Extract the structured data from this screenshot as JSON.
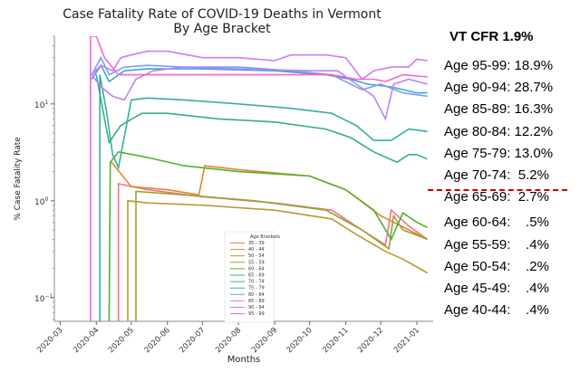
{
  "chart_data": {
    "type": "line",
    "title": "Case Fatality Rate of COVID-19 Deaths in Vermont",
    "subtitle": "By Age Bracket",
    "xlabel": "Months",
    "ylabel": "% Case Fatality Rate",
    "yscale": "log",
    "ylim": [
      0.057,
      50
    ],
    "xlim": [
      "2020-02-25",
      "2021-01-15"
    ],
    "grid": false,
    "legend_title": "Age Brackets",
    "legend_position": "lower-center",
    "x_ticks": [
      "2020-03",
      "2020-04",
      "2020-05",
      "2020-06",
      "2020-07",
      "2020-08",
      "2020-09",
      "2020-10",
      "2020-11",
      "2020-12",
      "2021-01"
    ],
    "y_ticks": [
      {
        "value": 0.1,
        "base": "10",
        "exp": "−1"
      },
      {
        "value": 1,
        "base": "10",
        "exp": "0"
      },
      {
        "value": 10,
        "base": "10",
        "exp": "1"
      }
    ],
    "series": [
      {
        "name": "35 - 39",
        "color": "#f77189",
        "points": [
          [
            "2020-04-20",
            0.057
          ],
          [
            "2020-04-20",
            1.5
          ],
          [
            "2020-05-15",
            1.3
          ],
          [
            "2020-07-01",
            1.1
          ],
          [
            "2020-09-01",
            0.95
          ],
          [
            "2020-10-20",
            0.8
          ],
          [
            "2020-11-15",
            0.5
          ],
          [
            "2020-12-05",
            0.35
          ],
          [
            "2020-12-10",
            0.8
          ],
          [
            "2020-12-25",
            0.55
          ],
          [
            "2021-01-10",
            0.4
          ]
        ]
      },
      {
        "name": "40 - 44",
        "color": "#e68332",
        "points": [
          [
            "2020-04-14",
            2.5
          ],
          [
            "2020-05-01",
            1.4
          ],
          [
            "2020-06-01",
            1.3
          ],
          [
            "2020-06-28",
            1.15
          ],
          [
            "2020-07-03",
            2.3
          ],
          [
            "2020-08-01",
            2.1
          ],
          [
            "2020-10-01",
            1.8
          ],
          [
            "2020-11-01",
            1.3
          ],
          [
            "2020-12-01",
            0.7
          ],
          [
            "2021-01-10",
            0.4
          ]
        ]
      },
      {
        "name": "50 - 54",
        "color": "#bb9832",
        "points": [
          [
            "2020-04-28",
            0.057
          ],
          [
            "2020-04-28",
            1.0
          ],
          [
            "2020-05-15",
            0.95
          ],
          [
            "2020-07-01",
            0.9
          ],
          [
            "2020-09-01",
            0.8
          ],
          [
            "2020-10-20",
            0.65
          ],
          [
            "2020-11-10",
            0.45
          ],
          [
            "2020-12-05",
            0.3
          ],
          [
            "2020-12-20",
            0.25
          ],
          [
            "2021-01-10",
            0.18
          ]
        ]
      },
      {
        "name": "55 - 59",
        "color": "#97a431",
        "points": [
          [
            "2020-05-05",
            0.057
          ],
          [
            "2020-05-05",
            1.25
          ],
          [
            "2020-06-15",
            1.15
          ],
          [
            "2020-08-15",
            1.0
          ],
          [
            "2020-10-15",
            0.8
          ],
          [
            "2020-11-15",
            0.5
          ],
          [
            "2020-12-08",
            0.32
          ],
          [
            "2020-12-12",
            0.7
          ],
          [
            "2020-12-20",
            0.5
          ],
          [
            "2021-01-10",
            0.4
          ]
        ]
      },
      {
        "name": "60 - 64",
        "color": "#50b131",
        "points": [
          [
            "2020-04-12",
            0.057
          ],
          [
            "2020-04-13",
            2.5
          ],
          [
            "2020-04-20",
            3.2
          ],
          [
            "2020-05-15",
            2.8
          ],
          [
            "2020-06-15",
            2.3
          ],
          [
            "2020-08-01",
            2.0
          ],
          [
            "2020-10-01",
            1.8
          ],
          [
            "2020-11-01",
            1.3
          ],
          [
            "2020-11-25",
            0.8
          ],
          [
            "2020-12-10",
            0.4
          ],
          [
            "2020-12-20",
            0.75
          ],
          [
            "2021-01-01",
            0.6
          ],
          [
            "2021-01-10",
            0.53
          ]
        ]
      },
      {
        "name": "65 - 69",
        "color": "#34af84",
        "points": [
          [
            "2020-04-01",
            20
          ],
          [
            "2020-04-08",
            7
          ],
          [
            "2020-04-12",
            4
          ],
          [
            "2020-04-22",
            6
          ],
          [
            "2020-05-10",
            8
          ],
          [
            "2020-06-01",
            8
          ],
          [
            "2020-07-15",
            7
          ],
          [
            "2020-09-01",
            6.5
          ],
          [
            "2020-10-15",
            5.5
          ],
          [
            "2020-11-05",
            4.5
          ],
          [
            "2020-11-25",
            3.2
          ],
          [
            "2020-12-15",
            2.5
          ],
          [
            "2020-12-25",
            3
          ],
          [
            "2021-01-01",
            3
          ],
          [
            "2021-01-10",
            2.7
          ]
        ]
      },
      {
        "name": "70 - 74",
        "color": "#36ada4",
        "points": [
          [
            "2020-04-04",
            0.057
          ],
          [
            "2020-04-04",
            20
          ],
          [
            "2020-04-10",
            8
          ],
          [
            "2020-04-15",
            3
          ],
          [
            "2020-04-20",
            2.2
          ],
          [
            "2020-05-01",
            11
          ],
          [
            "2020-05-15",
            11.5
          ],
          [
            "2020-06-15",
            11
          ],
          [
            "2020-08-01",
            10
          ],
          [
            "2020-09-15",
            9
          ],
          [
            "2020-10-20",
            8
          ],
          [
            "2020-11-10",
            6
          ],
          [
            "2020-11-25",
            4.2
          ],
          [
            "2020-12-10",
            4.2
          ],
          [
            "2020-12-25",
            5.5
          ],
          [
            "2021-01-10",
            5.2
          ]
        ]
      },
      {
        "name": "75 - 79",
        "color": "#38a7d0",
        "points": [
          [
            "2020-03-28",
            18
          ],
          [
            "2020-04-05",
            25
          ],
          [
            "2020-04-12",
            17
          ],
          [
            "2020-04-25",
            22
          ],
          [
            "2020-05-15",
            23
          ],
          [
            "2020-07-01",
            23
          ],
          [
            "2020-09-01",
            22
          ],
          [
            "2020-10-15",
            20
          ],
          [
            "2020-11-05",
            18
          ],
          [
            "2020-11-20",
            16
          ],
          [
            "2020-12-10",
            15
          ],
          [
            "2021-01-01",
            13
          ],
          [
            "2021-01-10",
            13
          ]
        ]
      },
      {
        "name": "80 - 84",
        "color": "#7d9af7",
        "points": [
          [
            "2020-03-28",
            20
          ],
          [
            "2020-04-05",
            30
          ],
          [
            "2020-04-12",
            20
          ],
          [
            "2020-04-25",
            24
          ],
          [
            "2020-05-15",
            25
          ],
          [
            "2020-06-15",
            24
          ],
          [
            "2020-08-01",
            24
          ],
          [
            "2020-09-15",
            22
          ],
          [
            "2020-10-20",
            20
          ],
          [
            "2020-11-15",
            14
          ],
          [
            "2020-12-01",
            16
          ],
          [
            "2020-12-20",
            13
          ],
          [
            "2021-01-10",
            12
          ]
        ]
      },
      {
        "name": "85 - 89",
        "color": "#bb83f4",
        "points": [
          [
            "2020-03-28",
            20
          ],
          [
            "2020-04-05",
            15
          ],
          [
            "2020-04-15",
            12
          ],
          [
            "2020-04-25",
            11
          ],
          [
            "2020-05-05",
            18
          ],
          [
            "2020-05-20",
            22
          ],
          [
            "2020-06-15",
            24
          ],
          [
            "2020-08-01",
            23
          ],
          [
            "2020-10-01",
            22
          ],
          [
            "2020-10-25",
            22
          ],
          [
            "2020-11-10",
            16
          ],
          [
            "2020-11-25",
            12
          ],
          [
            "2020-12-05",
            7
          ],
          [
            "2020-12-12",
            16
          ],
          [
            "2020-12-25",
            18
          ],
          [
            "2021-01-10",
            16
          ]
        ]
      },
      {
        "name": "90 - 94",
        "color": "#cc7af4",
        "points": [
          [
            "2020-03-28",
            20
          ],
          [
            "2020-04-05",
            25
          ],
          [
            "2020-04-15",
            22
          ],
          [
            "2020-04-22",
            30
          ],
          [
            "2020-05-01",
            32
          ],
          [
            "2020-05-15",
            35
          ],
          [
            "2020-06-01",
            35
          ],
          [
            "2020-07-01",
            30
          ],
          [
            "2020-08-01",
            30
          ],
          [
            "2020-09-01",
            28
          ],
          [
            "2020-09-15",
            32
          ],
          [
            "2020-10-15",
            32
          ],
          [
            "2020-11-01",
            30
          ],
          [
            "2020-11-15",
            18
          ],
          [
            "2020-11-25",
            22
          ],
          [
            "2020-12-10",
            24
          ],
          [
            "2020-12-25",
            24
          ],
          [
            "2021-01-01",
            29
          ],
          [
            "2021-01-10",
            28
          ]
        ]
      },
      {
        "name": "95 - 99",
        "color": "#f565cc",
        "points": [
          [
            "2020-03-27",
            0.057
          ],
          [
            "2020-03-27",
            50
          ],
          [
            "2020-04-01",
            50
          ],
          [
            "2020-04-08",
            30
          ],
          [
            "2020-04-20",
            20
          ],
          [
            "2020-06-01",
            20
          ],
          [
            "2020-09-01",
            20
          ],
          [
            "2020-10-20",
            20
          ],
          [
            "2020-11-10",
            18
          ],
          [
            "2020-11-25",
            18
          ],
          [
            "2020-12-05",
            17
          ],
          [
            "2020-12-20",
            20
          ],
          [
            "2021-01-10",
            19
          ]
        ]
      }
    ]
  },
  "panel": {
    "header": "VT CFR 1.9%",
    "divider_color": "#cc0000",
    "rows": [
      "Age 95-99: 18.9%",
      "Age 90-94: 28.7%",
      "Age 85-89: 16.3%",
      "Age 80-84: 12.2%",
      "Age 75-79: 13.0%",
      "Age 70-74:  5.2%",
      "Age 65-69:  2.7%",
      "Age 60-64:    .5%",
      "Age 55-59:    .4%",
      "Age 50-54:    .2%",
      "Age 45-49:    .4%",
      "Age 40-44:    .4%"
    ]
  }
}
